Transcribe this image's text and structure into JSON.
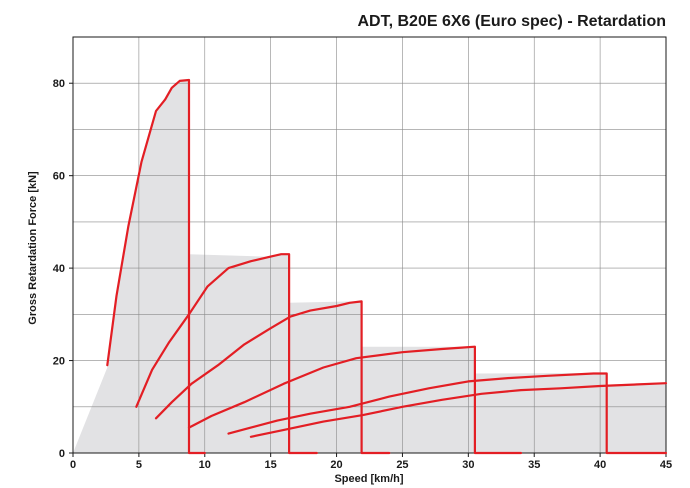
{
  "chart_data": {
    "type": "line",
    "title": "ADT, B20E 6X6 (Euro spec) - Retardation",
    "xlabel": "Speed [km/h]",
    "ylabel": "Gross Retardation Force [kN]",
    "xlim": [
      0,
      45
    ],
    "ylim": [
      0,
      90
    ],
    "x_ticks": [
      0,
      5,
      10,
      15,
      20,
      25,
      30,
      35,
      40,
      45
    ],
    "y_ticks": [
      0,
      20,
      40,
      60,
      80
    ],
    "grid": true,
    "envelope_fill": "#e2e2e4",
    "line_color": "#e31e24",
    "envelope": [
      [
        0,
        0
      ],
      [
        2.6,
        18.5
      ],
      [
        2.6,
        19
      ],
      [
        3.3,
        34
      ],
      [
        4.2,
        49
      ],
      [
        5.2,
        63
      ],
      [
        6.3,
        74
      ],
      [
        7.5,
        79
      ],
      [
        8.1,
        80.5
      ],
      [
        8.8,
        80.7
      ],
      [
        8.8,
        43
      ],
      [
        14.5,
        42.5
      ],
      [
        16.4,
        43
      ],
      [
        16.4,
        32.5
      ],
      [
        21.2,
        32.8
      ],
      [
        21.9,
        32.8
      ],
      [
        21.9,
        23
      ],
      [
        29.2,
        23
      ],
      [
        30.5,
        23
      ],
      [
        30.5,
        17.2
      ],
      [
        39.5,
        17.3
      ],
      [
        40.5,
        17.3
      ],
      [
        40.5,
        14.8
      ],
      [
        45,
        15.3
      ],
      [
        45,
        0
      ]
    ],
    "series": [
      {
        "points": [
          [
            2.6,
            19
          ],
          [
            3.3,
            34
          ],
          [
            4.2,
            49
          ],
          [
            5.2,
            63
          ],
          [
            6.3,
            74
          ],
          [
            7.0,
            76.5
          ],
          [
            7.5,
            79
          ],
          [
            8.1,
            80.5
          ],
          [
            8.8,
            80.7
          ],
          [
            8.8,
            0
          ],
          [
            10,
            0
          ]
        ]
      },
      {
        "points": [
          [
            4.8,
            10
          ],
          [
            6.0,
            18
          ],
          [
            7.3,
            24
          ],
          [
            8.8,
            30
          ],
          [
            10.2,
            36
          ],
          [
            11.8,
            40
          ],
          [
            13.5,
            41.5
          ],
          [
            15.0,
            42.5
          ],
          [
            15.8,
            43
          ],
          [
            16.4,
            43
          ],
          [
            16.4,
            0
          ],
          [
            18.5,
            0
          ]
        ]
      },
      {
        "points": [
          [
            6.3,
            7.5
          ],
          [
            7.5,
            11
          ],
          [
            9.0,
            15
          ],
          [
            11.0,
            19
          ],
          [
            13.0,
            23.5
          ],
          [
            15.0,
            27
          ],
          [
            16.5,
            29.5
          ],
          [
            18.0,
            30.8
          ],
          [
            20.0,
            31.8
          ],
          [
            21.0,
            32.5
          ],
          [
            21.9,
            32.8
          ],
          [
            21.9,
            0
          ],
          [
            24.0,
            0
          ]
        ]
      },
      {
        "points": [
          [
            8.8,
            5.5
          ],
          [
            10.5,
            8
          ],
          [
            13.0,
            11
          ],
          [
            16.0,
            15
          ],
          [
            19.0,
            18.5
          ],
          [
            21.5,
            20.5
          ],
          [
            25.0,
            21.8
          ],
          [
            28.0,
            22.5
          ],
          [
            29.5,
            22.8
          ],
          [
            30.5,
            23
          ],
          [
            30.5,
            0
          ],
          [
            34.0,
            0
          ]
        ]
      },
      {
        "points": [
          [
            11.8,
            4.2
          ],
          [
            13.5,
            5.5
          ],
          [
            15.5,
            7
          ],
          [
            18.0,
            8.5
          ],
          [
            21.0,
            10
          ],
          [
            24.0,
            12.2
          ],
          [
            27.0,
            14
          ],
          [
            30.0,
            15.5
          ],
          [
            33.0,
            16.2
          ],
          [
            36.0,
            16.7
          ],
          [
            39.5,
            17.2
          ],
          [
            40.5,
            17.2
          ],
          [
            40.5,
            0
          ],
          [
            45,
            0
          ]
        ]
      },
      {
        "points": [
          [
            13.5,
            3.5
          ],
          [
            16.0,
            5
          ],
          [
            19.0,
            6.8
          ],
          [
            22.0,
            8.2
          ],
          [
            25.0,
            10
          ],
          [
            28.0,
            11.5
          ],
          [
            31.0,
            12.8
          ],
          [
            34.0,
            13.6
          ],
          [
            37.0,
            14
          ],
          [
            40.0,
            14.5
          ],
          [
            42.5,
            14.8
          ],
          [
            45,
            15.1
          ]
        ]
      }
    ]
  }
}
